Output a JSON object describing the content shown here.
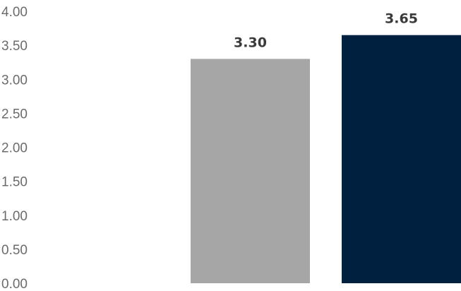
{
  "chart_data": {
    "type": "bar",
    "categories": [
      "",
      ""
    ],
    "values": [
      3.3,
      3.65
    ],
    "value_labels": [
      "3.30",
      "3.65"
    ],
    "colors": [
      "#a6a6a6",
      "#002040"
    ],
    "ylim": [
      0,
      4
    ],
    "yticks": [
      "0.00",
      "0.50",
      "1.00",
      "1.50",
      "2.00",
      "2.50",
      "3.00",
      "3.50",
      "4.00"
    ],
    "grid": false,
    "title": "",
    "xlabel": "",
    "ylabel": ""
  }
}
